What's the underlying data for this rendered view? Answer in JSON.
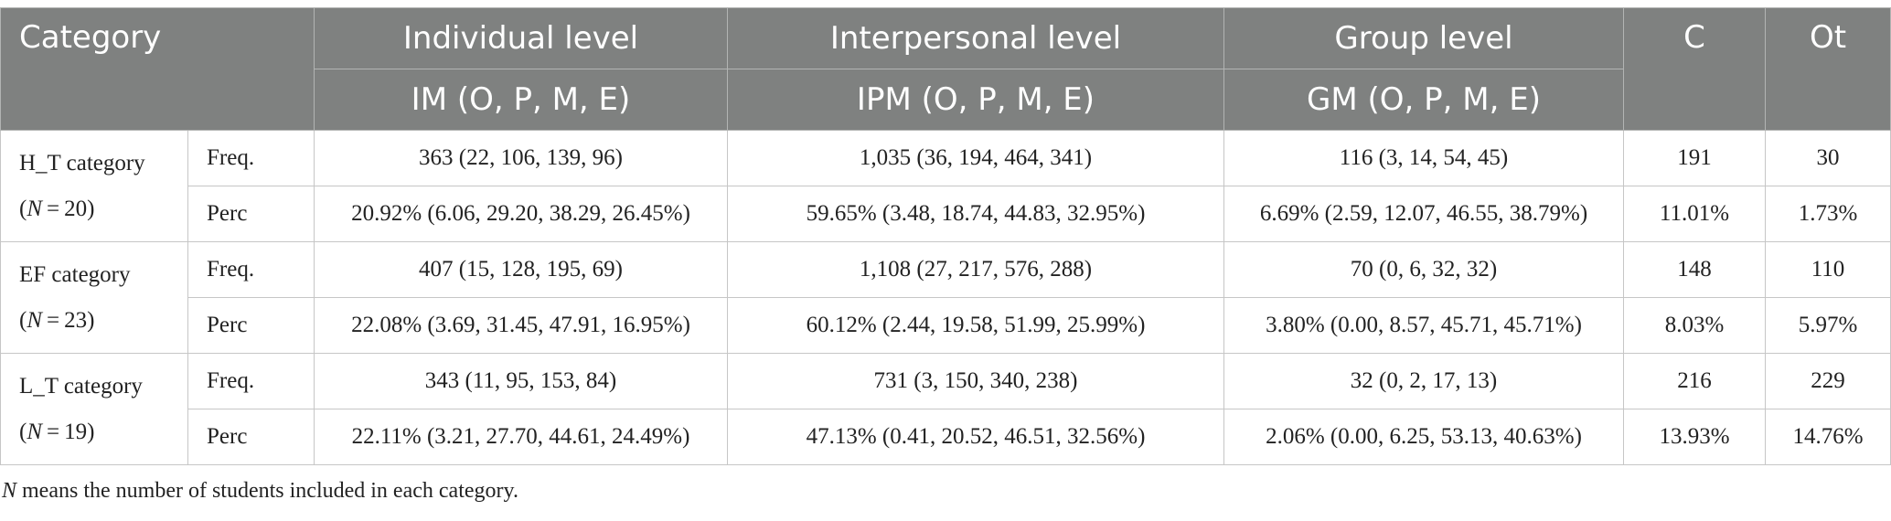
{
  "header": {
    "category": "Category",
    "individual_level": "Individual level",
    "interpersonal_level": "Interpersonal level",
    "group_level": "Group level",
    "c": "C",
    "ot": "Ot",
    "im_sub": "IM (O, P, M, E)",
    "ipm_sub": "IPM (O, P, M, E)",
    "gm_sub": "GM (O, P, M, E)"
  },
  "groups": [
    {
      "name": "H_T category",
      "n_label": "N",
      "n_value": " = 20)",
      "rows": [
        {
          "metric": "Freq.",
          "im": "363 (22, 106, 139, 96)",
          "ipm": "1,035 (36, 194, 464, 341)",
          "gm": "116 (3, 14, 54, 45)",
          "c": "191",
          "ot": "30"
        },
        {
          "metric": "Perc",
          "im": "20.92% (6.06, 29.20, 38.29, 26.45%)",
          "ipm": "59.65% (3.48, 18.74, 44.83, 32.95%)",
          "gm": "6.69% (2.59, 12.07, 46.55, 38.79%)",
          "c": "11.01%",
          "ot": "1.73%"
        }
      ]
    },
    {
      "name": "EF category",
      "n_label": "N",
      "n_value": " = 23)",
      "rows": [
        {
          "metric": "Freq.",
          "im": "407 (15, 128, 195, 69)",
          "ipm": "1,108 (27, 217, 576, 288)",
          "gm": "70 (0, 6, 32, 32)",
          "c": "148",
          "ot": "110"
        },
        {
          "metric": "Perc",
          "im": "22.08% (3.69, 31.45, 47.91, 16.95%)",
          "ipm": "60.12% (2.44, 19.58, 51.99, 25.99%)",
          "gm": "3.80% (0.00, 8.57, 45.71, 45.71%)",
          "c": "8.03%",
          "ot": "5.97%"
        }
      ]
    },
    {
      "name": "L_T category",
      "n_label": "N",
      "n_value": " = 19)",
      "rows": [
        {
          "metric": "Freq.",
          "im": "343 (11, 95, 153, 84)",
          "ipm": "731 (3, 150, 340, 238)",
          "gm": "32 (0, 2, 17, 13)",
          "c": "216",
          "ot": "229"
        },
        {
          "metric": "Perc",
          "im": "22.11% (3.21, 27.70, 44.61, 24.49%)",
          "ipm": "47.13% (0.41, 20.52, 46.51, 32.56%)",
          "gm": "2.06% (0.00, 6.25, 53.13, 40.63%)",
          "c": "13.93%",
          "ot": "14.76%"
        }
      ]
    }
  ],
  "footnote": {
    "n": "N",
    "text": " means the number of students included in each category."
  }
}
